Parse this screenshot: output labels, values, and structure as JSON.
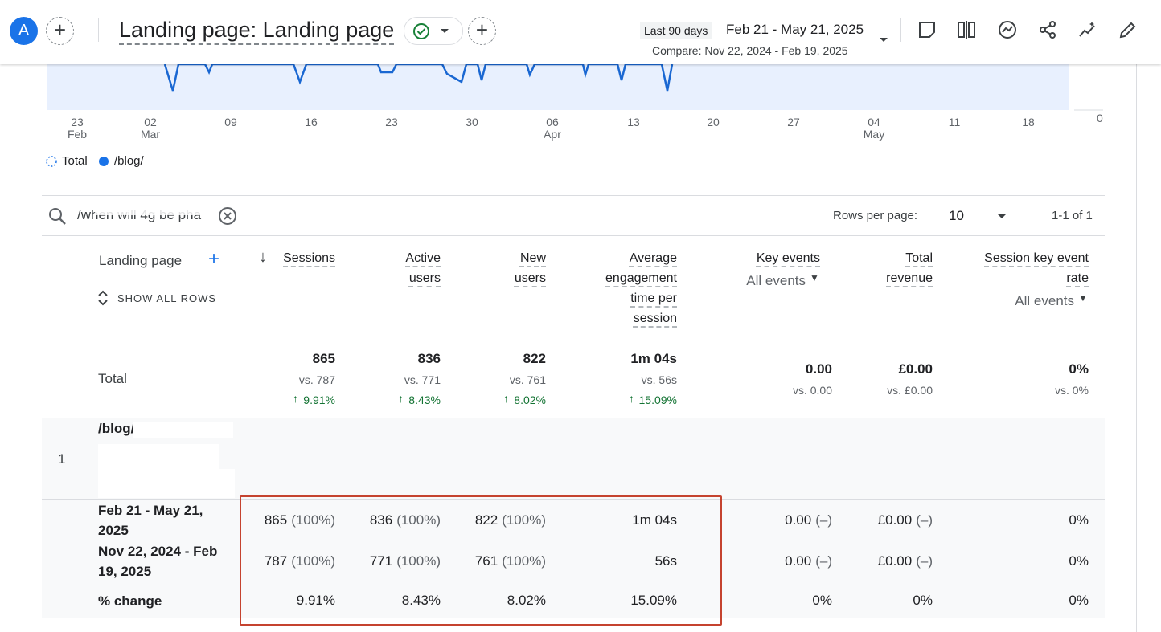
{
  "header": {
    "avatar": "A",
    "title": "Landing page: Landing page",
    "date_preset": "Last 90 days",
    "date_range": "Feb 21 - May 21, 2025",
    "compare": "Compare: Nov 22, 2024 - Feb 19, 2025"
  },
  "chart": {
    "x_labels": [
      {
        "day": "23",
        "month": "Feb"
      },
      {
        "day": "02",
        "month": "Mar"
      },
      {
        "day": "09"
      },
      {
        "day": "16"
      },
      {
        "day": "23"
      },
      {
        "day": "30"
      },
      {
        "day": "06",
        "month": "Apr"
      },
      {
        "day": "13"
      },
      {
        "day": "20"
      },
      {
        "day": "27"
      },
      {
        "day": "04",
        "month": "May"
      },
      {
        "day": "11"
      },
      {
        "day": "18"
      }
    ],
    "y_label": "0",
    "legend": [
      "Total",
      "/blog/"
    ]
  },
  "toolbar": {
    "search": "/when will 4g be pha",
    "rows_per_page_label": "Rows per page:",
    "rows_per_page": "10",
    "pagination": "1-1 of 1"
  },
  "table": {
    "dimension": "Landing page",
    "show_all": "SHOW ALL ROWS",
    "columns": [
      {
        "label": "Sessions"
      },
      {
        "label": "Active users"
      },
      {
        "label": "New users"
      },
      {
        "label": "Average engagement time per session"
      },
      {
        "label": "Key events",
        "filter": "All events"
      },
      {
        "label": "Total revenue"
      },
      {
        "label": "Session key event rate",
        "filter": "All events"
      }
    ],
    "total": {
      "label": "Total",
      "cells": [
        {
          "value": "865",
          "compare": "vs. 787",
          "change": "9.91%"
        },
        {
          "value": "836",
          "compare": "vs. 771",
          "change": "8.43%"
        },
        {
          "value": "822",
          "compare": "vs. 761",
          "change": "8.02%"
        },
        {
          "value": "1m 04s",
          "compare": "vs. 56s",
          "change": "15.09%"
        },
        {
          "value": "0.00",
          "compare": "vs. 0.00"
        },
        {
          "value": "£0.00",
          "compare": "vs. £0.00"
        },
        {
          "value": "0%",
          "compare": "vs. 0%"
        }
      ]
    },
    "rows": [
      {
        "index": "1",
        "label": "/blog/w",
        "subrows": [
          {
            "label": "Feb 21 - May 21, 2025",
            "cells": [
              {
                "value": "865",
                "note": "(100%)"
              },
              {
                "value": "836",
                "note": "(100%)"
              },
              {
                "value": "822",
                "note": "(100%)"
              },
              {
                "value": "1m 04s"
              },
              {
                "value": "0.00",
                "note": "(–)"
              },
              {
                "value": "£0.00",
                "note": "(–)"
              },
              {
                "value": "0%"
              }
            ]
          },
          {
            "label": "Nov 22, 2024 - Feb 19, 2025",
            "cells": [
              {
                "value": "787",
                "note": "(100%)"
              },
              {
                "value": "771",
                "note": "(100%)"
              },
              {
                "value": "761",
                "note": "(100%)"
              },
              {
                "value": "56s"
              },
              {
                "value": "0.00",
                "note": "(–)"
              },
              {
                "value": "£0.00",
                "note": "(–)"
              },
              {
                "value": "0%"
              }
            ]
          },
          {
            "label": "% change",
            "cells": [
              {
                "value": "9.91%"
              },
              {
                "value": "8.43%"
              },
              {
                "value": "8.02%"
              },
              {
                "value": "15.09%"
              },
              {
                "value": "0%"
              },
              {
                "value": "0%"
              },
              {
                "value": "0%"
              }
            ]
          }
        ]
      }
    ]
  }
}
